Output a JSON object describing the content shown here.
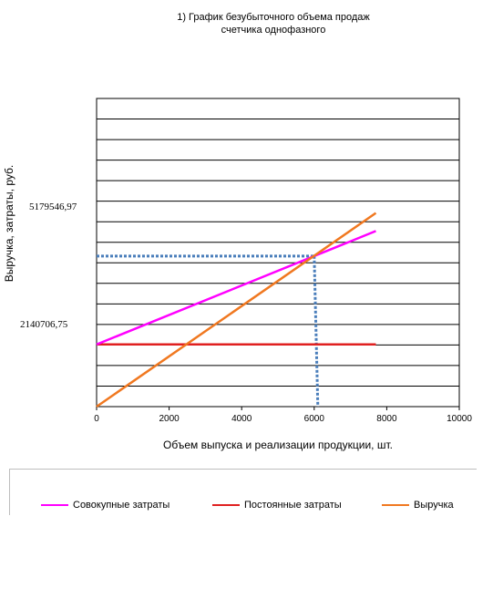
{
  "chart_data": {
    "type": "line",
    "title_line1": "1) График безубыточного объема продаж",
    "title_line2": "счетчика однофазного",
    "xlabel": "Объем выпуска и реализации продукции, шт.",
    "ylabel": "Выручка, затраты, руб.",
    "xlim": [
      0,
      10000
    ],
    "x_ticks": [
      "0",
      "2000",
      "4000",
      "6000",
      "8000",
      "10000"
    ],
    "x_tick_values": [
      0,
      2000,
      4000,
      6000,
      8000,
      10000
    ],
    "ylim": [
      0,
      10600000
    ],
    "y_gridlines": 15,
    "grid": true,
    "legend_position": "bottom",
    "series": [
      {
        "name": "Совокупные затраты",
        "color": "#ff00ff",
        "x": [
          0,
          7700
        ],
        "y": [
          2140706.75,
          6040000
        ]
      },
      {
        "name": "Постоянные затраты",
        "color": "#e02020",
        "x": [
          0,
          7700
        ],
        "y": [
          2140706.75,
          2140706.75
        ]
      },
      {
        "name": "Выручка",
        "color": "#f07820",
        "x": [
          0,
          7700
        ],
        "y": [
          0,
          6660000
        ]
      }
    ],
    "annotations": {
      "breakeven_y_label": "5179546,97",
      "breakeven_y": 5179546.97,
      "fixed_y_label": "2140706,75",
      "fixed_y": 2140706.75,
      "breakeven_x": 6000,
      "guide_color": "#4a7ebb"
    }
  }
}
